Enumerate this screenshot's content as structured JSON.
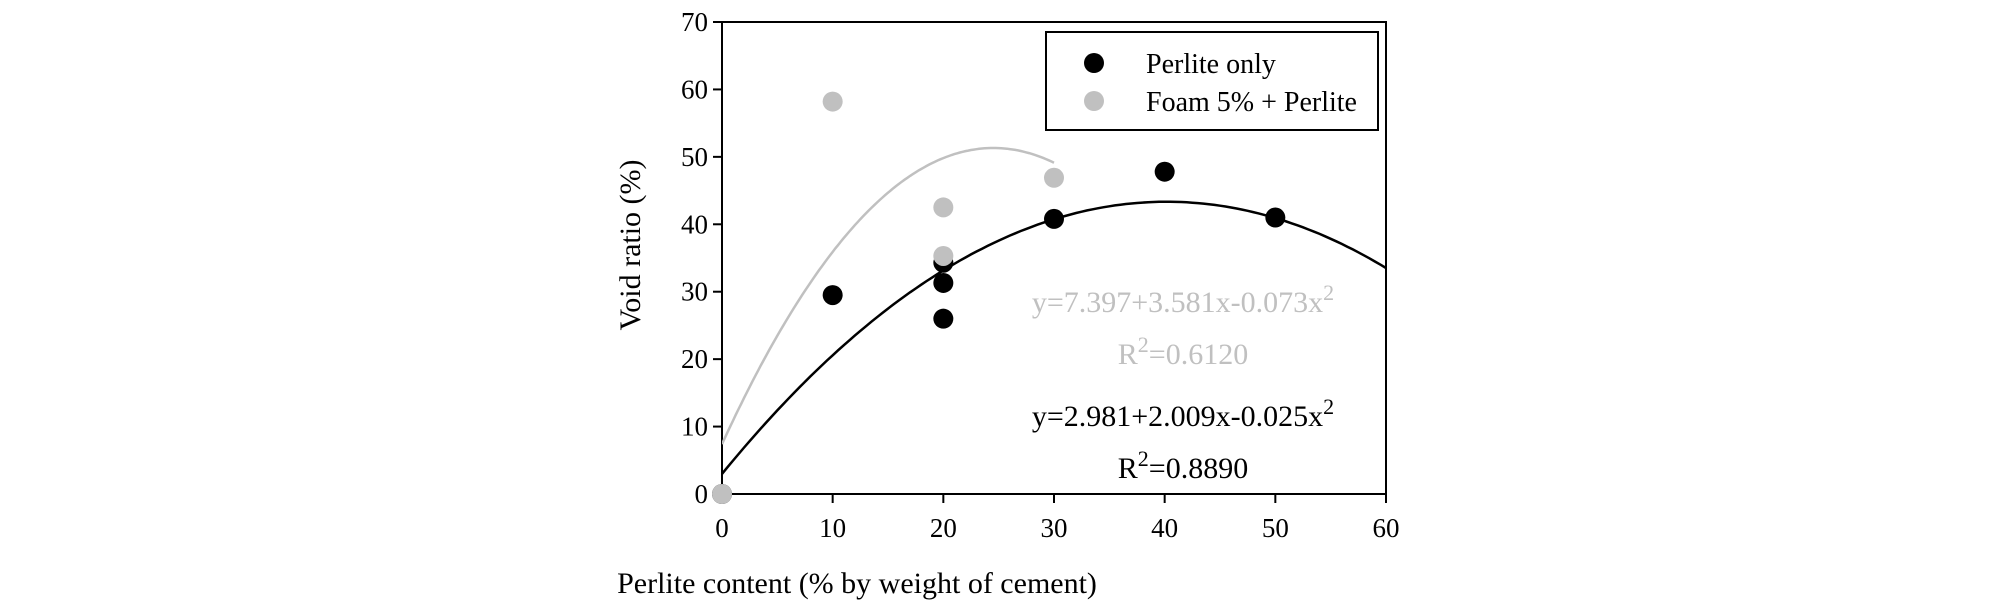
{
  "chart_data": {
    "type": "scatter",
    "xlabel": "Perlite content (% by weight of cement)",
    "ylabel": "Void ratio (%)",
    "xlim": [
      0,
      60
    ],
    "ylim": [
      0,
      70
    ],
    "xticks": [
      "0",
      "10",
      "20",
      "30",
      "40",
      "50",
      "60"
    ],
    "yticks": [
      "0",
      "10",
      "20",
      "30",
      "40",
      "50",
      "60",
      "70"
    ],
    "grid": false,
    "legend_position": "top-right",
    "series": [
      {
        "name": "Perlite only",
        "color": "#000000",
        "points": [
          {
            "x": 0,
            "y": 0
          },
          {
            "x": 10,
            "y": 29.5
          },
          {
            "x": 20,
            "y": 26
          },
          {
            "x": 20,
            "y": 31.3
          },
          {
            "x": 20,
            "y": 34.3
          },
          {
            "x": 30,
            "y": 40.8
          },
          {
            "x": 40,
            "y": 47.8
          },
          {
            "x": 50,
            "y": 41
          }
        ],
        "fit": {
          "a": 2.981,
          "b": 2.009,
          "c": -0.025,
          "x_range": [
            0,
            60
          ]
        },
        "equation": "y=2.981+2.009x-0.025x",
        "equation_sup": "2",
        "r2_prefix": "R",
        "r2_sup": "2",
        "r2_value": "=0.8890"
      },
      {
        "name": "Foam 5% + Perlite",
        "color": "#c0c0c0",
        "points": [
          {
            "x": 0,
            "y": 0
          },
          {
            "x": 10,
            "y": 58.2
          },
          {
            "x": 20,
            "y": 35.3
          },
          {
            "x": 20,
            "y": 42.5
          },
          {
            "x": 30,
            "y": 46.9
          }
        ],
        "fit": {
          "a": 7.397,
          "b": 3.581,
          "c": -0.073,
          "x_range": [
            0,
            30
          ]
        },
        "equation": "y=7.397+3.581x-0.073x",
        "equation_sup": "2",
        "r2_prefix": "R",
        "r2_sup": "2",
        "r2_value": "=0.6120"
      }
    ]
  }
}
